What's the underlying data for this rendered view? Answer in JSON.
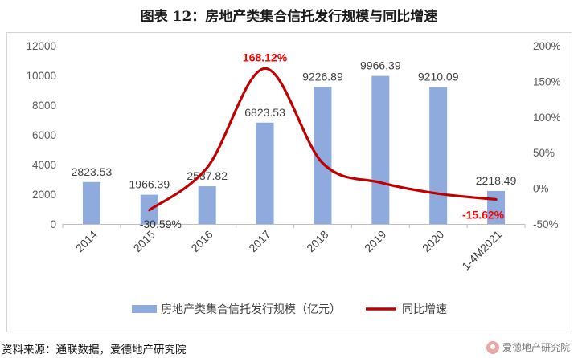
{
  "page": {
    "title": "图表 12：房地产类集合信托发行规模与同比增速",
    "source": "资料来源：通联数据，爱德地产研究院",
    "watermark": "爱德地产研究院"
  },
  "chart_data": {
    "type": "bar+line",
    "categories": [
      "2014",
      "2015",
      "2016",
      "2017",
      "2018",
      "2019",
      "2020",
      "1-4M2021"
    ],
    "series": [
      {
        "name": "房地产类集合信托发行规模（亿元）",
        "type": "bar",
        "axis": "left",
        "color": "#8faadc",
        "values": [
          2823.53,
          1966.39,
          2537.82,
          6823.53,
          9226.89,
          9966.39,
          9210.09,
          2218.49
        ],
        "labels": [
          "2823.53",
          "1966.39",
          "2537.82",
          "6823.53",
          "9226.89",
          "9966.39",
          "9210.09",
          "2218.49"
        ]
      },
      {
        "name": "同比增速",
        "type": "line",
        "axis": "right",
        "color": "#c00000",
        "values": [
          null,
          -30.59,
          29.06,
          168.12,
          35.22,
          8.02,
          -7.59,
          -15.62
        ],
        "labels": [
          {
            "index": 1,
            "text": "-30.59%",
            "color": "#333333"
          },
          {
            "index": 3,
            "text": "168.12%",
            "color": "#ff0000"
          },
          {
            "index": 7,
            "text": "-15.62%",
            "color": "#ff0000"
          }
        ]
      }
    ],
    "y_left": {
      "min": 0,
      "max": 12000,
      "ticks": [
        "0",
        "2000",
        "4000",
        "6000",
        "8000",
        "10000",
        "12000"
      ]
    },
    "y_right": {
      "min": -50,
      "max": 200,
      "ticks": [
        "-50%",
        "0%",
        "50%",
        "100%",
        "150%",
        "200%"
      ]
    },
    "legend": {
      "position": "bottom"
    }
  }
}
